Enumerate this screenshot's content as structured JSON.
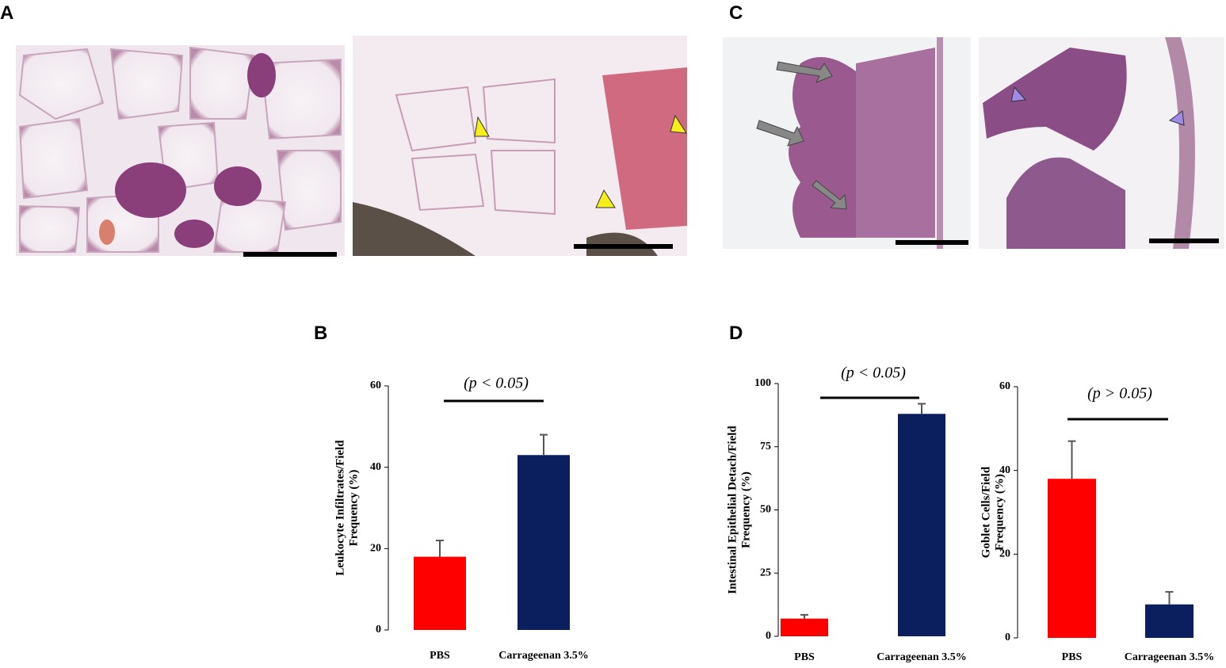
{
  "panels": [
    "A",
    "B",
    "C",
    "D"
  ],
  "chart_data": [
    {
      "type": "bar",
      "ylabel": [
        "Leukocyte Infiltrates/Field",
        "Frequency (%)"
      ],
      "annotation": "(p < 0.05)",
      "categories": [
        "PBS",
        "Carrageenan 3.5%"
      ],
      "values": [
        18,
        43
      ],
      "errors": [
        4,
        5
      ],
      "colors": [
        "#ff0000",
        "#0b1f5e"
      ],
      "ylim": [
        0,
        60
      ],
      "yticks": [
        0,
        20,
        40,
        60
      ]
    },
    {
      "type": "bar",
      "ylabel": [
        "Intestinal Epithelial Detach/Field",
        "Frequency (%)"
      ],
      "annotation": "(p < 0.05)",
      "categories": [
        "PBS",
        "Carrageenan 3.5%"
      ],
      "values": [
        7,
        88
      ],
      "errors": [
        1.5,
        4
      ],
      "colors": [
        "#ff0000",
        "#0b1f5e"
      ],
      "ylim": [
        0,
        100
      ],
      "yticks": [
        0,
        25,
        50,
        75,
        100
      ]
    },
    {
      "type": "bar",
      "ylabel": [
        "Goblet Cells/Field",
        "Frequency (%)"
      ],
      "annotation": "(p > 0.05)",
      "categories": [
        "PBS",
        "Carrageenan 3.5%"
      ],
      "values": [
        38,
        8
      ],
      "errors": [
        9,
        3
      ],
      "colors": [
        "#ff0000",
        "#0b1f5e"
      ],
      "ylim": [
        0,
        60
      ],
      "yticks": [
        0,
        20,
        40,
        60
      ]
    }
  ]
}
